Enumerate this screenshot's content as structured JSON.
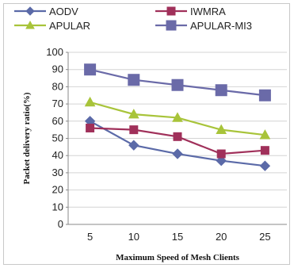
{
  "chart_data": {
    "type": "line",
    "x": [
      5,
      10,
      15,
      20,
      25
    ],
    "xlabel": "Maximum Speed of Mesh Clients",
    "ylabel": "Packet delivery ratio(%)",
    "ylim": [
      0,
      100
    ],
    "yticks": [
      0,
      10,
      20,
      30,
      40,
      50,
      60,
      70,
      80,
      90,
      100
    ],
    "grid": true,
    "legend_position": "top",
    "series": [
      {
        "name": "AODV",
        "values": [
          60,
          46,
          41,
          37,
          34
        ],
        "color": "#5b6aa8",
        "marker": "diamond"
      },
      {
        "name": "IWMRA",
        "values": [
          56,
          55,
          51,
          41,
          43
        ],
        "color": "#a0305a",
        "marker": "square"
      },
      {
        "name": "APULAR",
        "values": [
          71,
          64,
          62,
          55,
          52
        ],
        "color": "#a8c43a",
        "marker": "triangle"
      },
      {
        "name": "APULAR-MI3",
        "values": [
          90,
          84,
          81,
          78,
          75
        ],
        "color": "#6a6aa8",
        "marker": "square"
      }
    ]
  }
}
